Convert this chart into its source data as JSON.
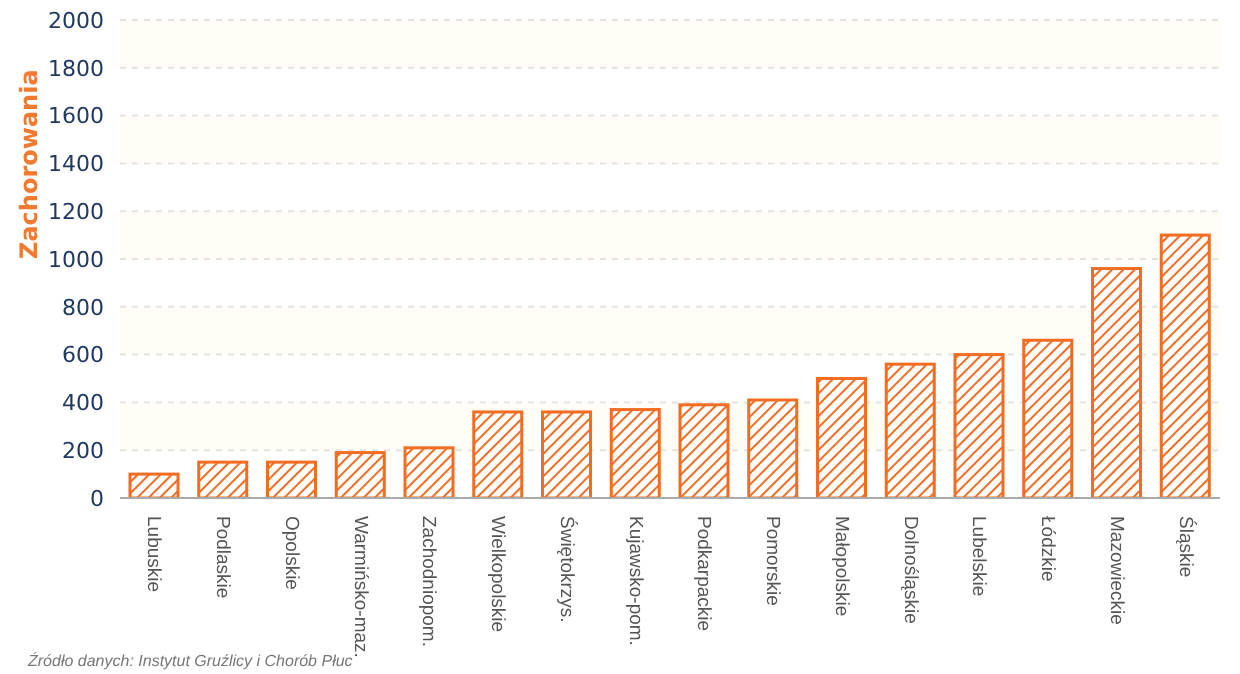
{
  "chart_data": {
    "type": "bar",
    "ylabel": "Zachorowania",
    "categories": [
      "Lubuskie",
      "Podlaskie",
      "Opolskie",
      "Warmińsko-maz.",
      "Zachodniopom.",
      "Wielkopolskie",
      "Świętokrzys.",
      "Kujawsko-pom.",
      "Podkarpackie",
      "Pomorskie",
      "Małopolskie",
      "Dolnośląskie",
      "Lubelskie",
      "Łódzkie",
      "Mazowieckie",
      "Śląskie"
    ],
    "values": [
      100,
      150,
      150,
      190,
      210,
      360,
      360,
      370,
      390,
      410,
      500,
      560,
      600,
      660,
      960,
      1100
    ],
    "color": "#f26d21",
    "ylim": [
      0,
      2000
    ],
    "yticks": [
      0,
      200,
      400,
      600,
      800,
      1000,
      1200,
      1400,
      1600,
      1800,
      2000
    ],
    "grid": "y",
    "annotations": [
      "Źródło danych: Instytut Gruźlicy i Chorób Płuc"
    ]
  }
}
